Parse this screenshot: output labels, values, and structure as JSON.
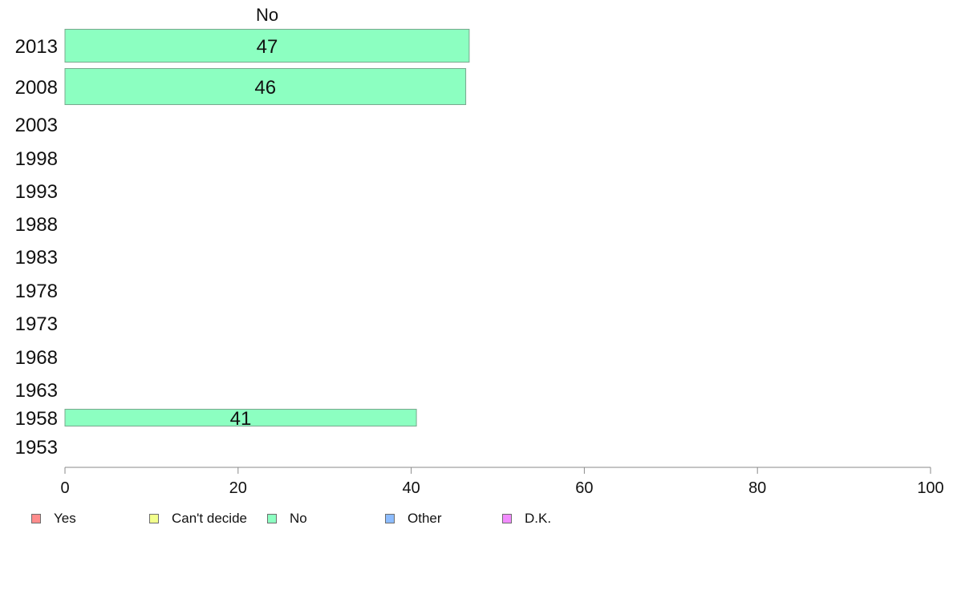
{
  "chart_data": {
    "type": "bar",
    "orientation": "horizontal",
    "title": "No",
    "categories": [
      "2013",
      "2008",
      "2003",
      "1998",
      "1993",
      "1988",
      "1983",
      "1978",
      "1973",
      "1968",
      "1963",
      "1958",
      "1953"
    ],
    "series": [
      {
        "name": "No",
        "values": [
          46.7,
          46.3,
          null,
          null,
          null,
          null,
          null,
          null,
          null,
          null,
          null,
          40.6,
          null
        ],
        "labels": [
          "47",
          "46",
          "",
          "",
          "",
          "",
          "",
          "",
          "",
          "",
          "",
          "41",
          ""
        ],
        "color": "#8cffc1"
      }
    ],
    "xlim": [
      0,
      100
    ],
    "xticks": [
      "0",
      "20",
      "40",
      "60",
      "80",
      "100"
    ],
    "grid": false,
    "legend_position": "bottom",
    "legend": [
      {
        "label": "Yes",
        "color": "#ff8c8c"
      },
      {
        "label": "Can't decide",
        "color": "#f2ff8c"
      },
      {
        "label": "No",
        "color": "#8cffc1"
      },
      {
        "label": "Other",
        "color": "#8cbcff"
      },
      {
        "label": "D.K.",
        "color": "#f28cff"
      }
    ]
  }
}
